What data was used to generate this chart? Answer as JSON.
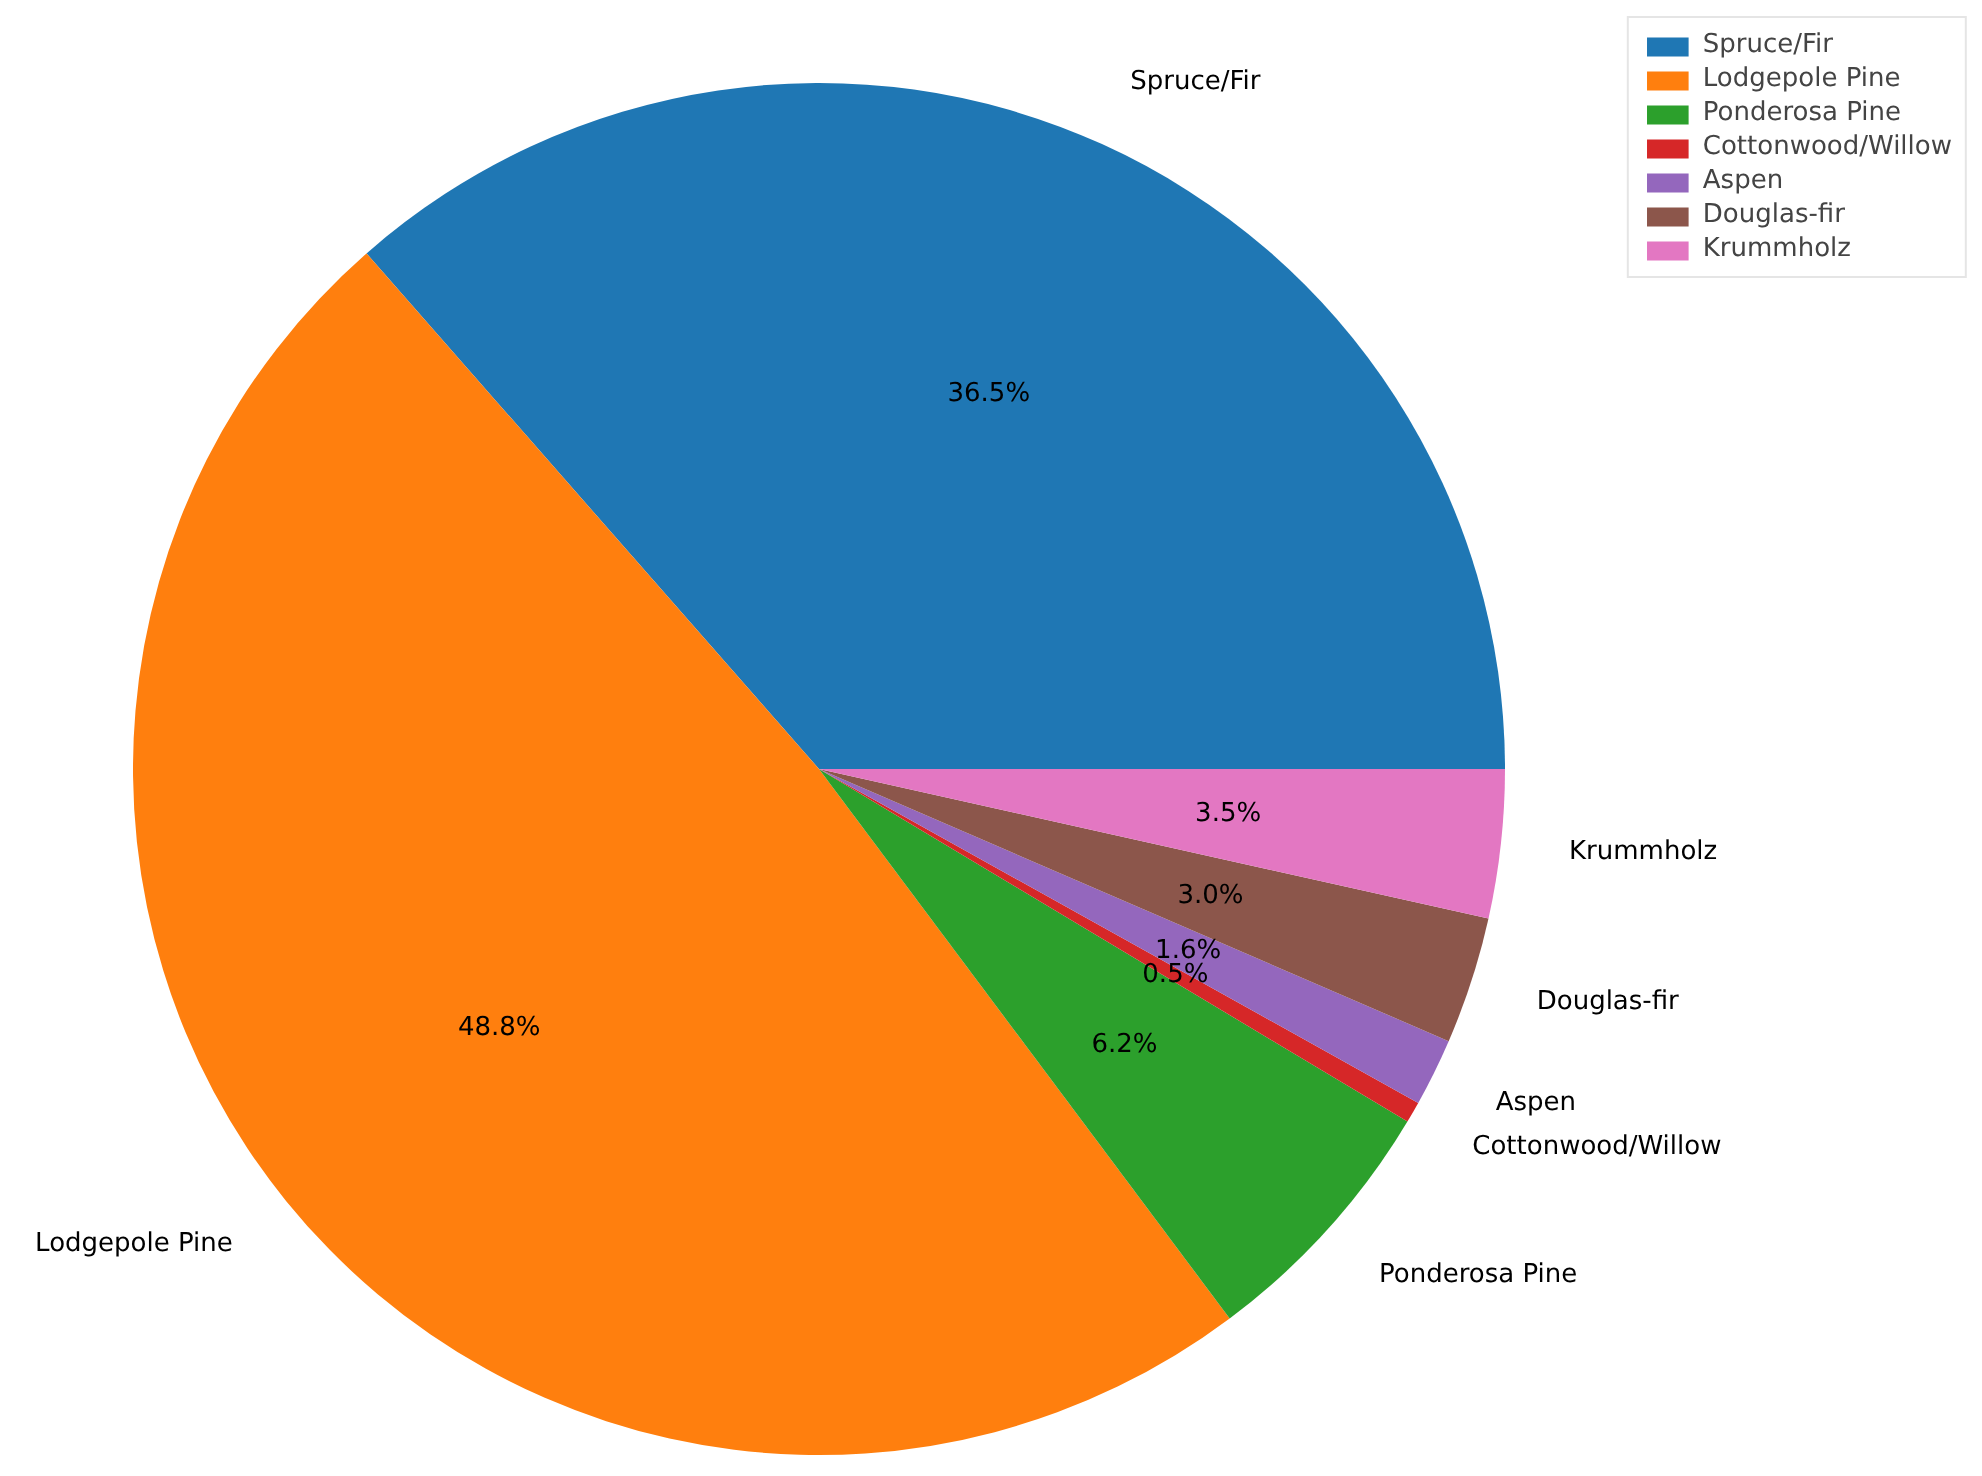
{
  "chart_data": {
    "type": "pie",
    "categories": [
      "Spruce/Fir",
      "Lodgepole Pine",
      "Ponderosa Pine",
      "Cottonwood/Willow",
      "Aspen",
      "Douglas-fir",
      "Krummholz"
    ],
    "values": [
      36.5,
      48.8,
      6.2,
      0.5,
      1.6,
      3.0,
      3.5
    ],
    "colors": [
      "#1f77b4",
      "#ff7f0e",
      "#2ca02c",
      "#d62728",
      "#9467bd",
      "#8c564b",
      "#e377c2"
    ],
    "value_labels": [
      "36.5%",
      "48.8%",
      "6.2%",
      "0.5%",
      "1.6%",
      "3.0%",
      "3.5%"
    ],
    "legend": "top right"
  }
}
